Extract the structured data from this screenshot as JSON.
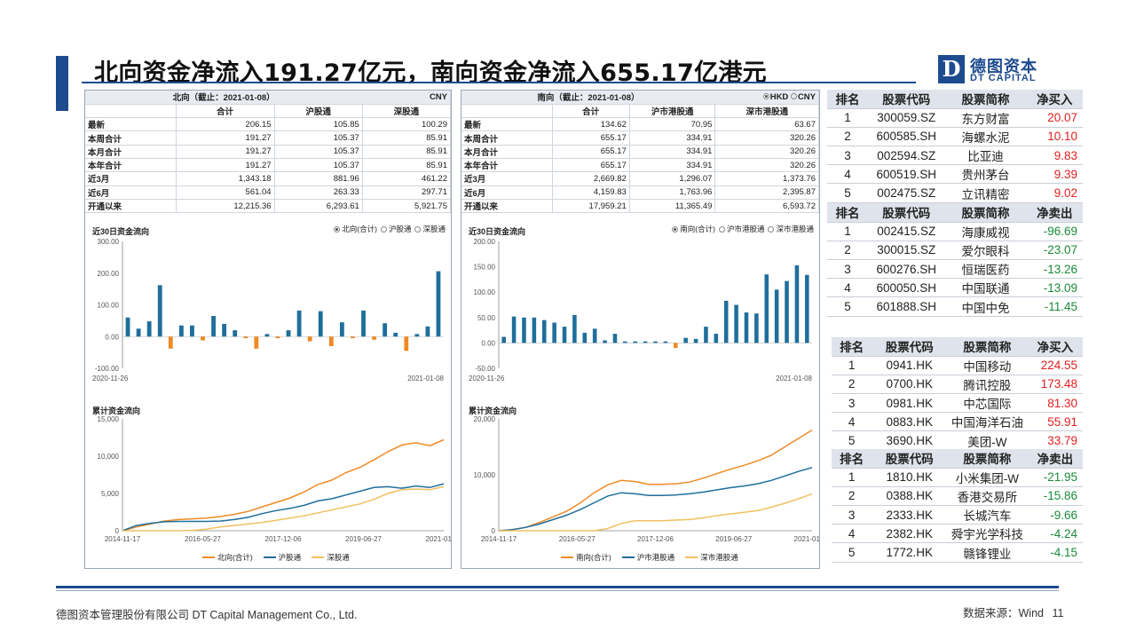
{
  "title": "北向资金净流入191.27亿元，南向资金净流入655.17亿港元",
  "logo": {
    "mark": "D",
    "cn": "德图资本",
    "en": "DT CAPITAL"
  },
  "north": {
    "header": "北向（截止：2021-01-08）",
    "currency": "CNY",
    "columns": [
      "合计",
      "沪股通",
      "深股通"
    ],
    "rows": [
      {
        "label": "最新",
        "values": [
          "206.15",
          "105.85",
          "100.29"
        ]
      },
      {
        "label": "本周合计",
        "values": [
          "191.27",
          "105.37",
          "85.91"
        ]
      },
      {
        "label": "本月合计",
        "values": [
          "191.27",
          "105.37",
          "85.91"
        ]
      },
      {
        "label": "本年合计",
        "values": [
          "191.27",
          "105.37",
          "85.91"
        ]
      },
      {
        "label": "近3月",
        "values": [
          "1,343.18",
          "881.96",
          "461.22"
        ]
      },
      {
        "label": "近6月",
        "values": [
          "561.04",
          "263.33",
          "297.71"
        ]
      },
      {
        "label": "开通以来",
        "values": [
          "12,215.36",
          "6,293.61",
          "5,921.75"
        ]
      }
    ],
    "daily_title": "近30日资金流向",
    "daily_radios": [
      "北向(合计)",
      "沪股通",
      "深股通"
    ],
    "cum_title": "累计资金流向",
    "cum_legend": [
      "北向(合计)",
      "沪股通",
      "深股通"
    ]
  },
  "south": {
    "header": "南向（截止：2021-01-08）",
    "currency_opts": [
      "HKD",
      "CNY"
    ],
    "columns": [
      "合计",
      "沪市港股通",
      "深市港股通"
    ],
    "rows": [
      {
        "label": "最新",
        "values": [
          "134.62",
          "70.95",
          "63.67"
        ]
      },
      {
        "label": "本周合计",
        "values": [
          "655.17",
          "334.91",
          "320.26"
        ]
      },
      {
        "label": "本月合计",
        "values": [
          "655.17",
          "334.91",
          "320.26"
        ]
      },
      {
        "label": "本年合计",
        "values": [
          "655.17",
          "334.91",
          "320.26"
        ]
      },
      {
        "label": "近3月",
        "values": [
          "2,669.82",
          "1,296.07",
          "1,373.76"
        ]
      },
      {
        "label": "近6月",
        "values": [
          "4,159.83",
          "1,763.96",
          "2,395.87"
        ]
      },
      {
        "label": "开通以来",
        "values": [
          "17,959.21",
          "11,365.49",
          "6,593.72"
        ]
      }
    ],
    "daily_title": "近30日资金流向",
    "daily_radios": [
      "南向(合计)",
      "沪市港股通",
      "深市港股通"
    ],
    "cum_title": "累计资金流向",
    "cum_legend": [
      "南向(合计)",
      "沪市港股通",
      "深市港股通"
    ]
  },
  "chart_data": [
    {
      "type": "bar",
      "title": "近30日资金流向",
      "x_start": "2020-11-26",
      "x_end": "2021-01-08",
      "ylim": [
        -100,
        300
      ],
      "yticks": [
        "-100.00",
        "0.00",
        "100.00",
        "200.00",
        "300.00"
      ],
      "values": [
        60,
        25,
        48,
        162,
        -38,
        35,
        35,
        -12,
        65,
        40,
        20,
        -5,
        -38,
        8,
        -5,
        20,
        82,
        -15,
        80,
        -30,
        45,
        -5,
        82,
        -10,
        42,
        12,
        -45,
        8,
        32,
        206
      ],
      "pos_color": "#1f6e9c",
      "neg_color": "#f08a24"
    },
    {
      "type": "bar",
      "title": "近30日资金流向",
      "x_start": "2020-11-26",
      "x_end": "2021-01-08",
      "ylim": [
        -50,
        200
      ],
      "yticks": [
        "-50.00",
        "0.00",
        "50.00",
        "100.00",
        "150.00",
        "200.00"
      ],
      "values": [
        12,
        52,
        50,
        50,
        45,
        40,
        32,
        55,
        20,
        28,
        5,
        18,
        3,
        3,
        3,
        3,
        3,
        -10,
        10,
        8,
        32,
        18,
        83,
        75,
        60,
        58,
        135,
        105,
        122,
        153,
        134
      ],
      "pos_color": "#1f6e9c",
      "neg_color": "#f08a24"
    },
    {
      "type": "line",
      "title": "累计资金流向",
      "xticks": [
        "2014-11-17",
        "2016-05-27",
        "2017-12-06",
        "2019-06-27",
        "2021-01-07"
      ],
      "ylim": [
        0,
        15000
      ],
      "yticks": [
        "0",
        "5,000",
        "10,000",
        "15,000"
      ],
      "series": [
        {
          "name": "北向(合计)",
          "color": "#f08a24",
          "values": [
            0,
            500,
            900,
            1300,
            1500,
            1600,
            1700,
            1900,
            2200,
            2600,
            3200,
            3800,
            4400,
            5200,
            6200,
            6800,
            7800,
            8500,
            9500,
            10600,
            11500,
            11800,
            11400,
            12200
          ]
        },
        {
          "name": "沪股通",
          "color": "#1f6e9c",
          "values": [
            0,
            700,
            1000,
            1200,
            1250,
            1250,
            1250,
            1300,
            1500,
            1800,
            2300,
            2700,
            3000,
            3400,
            4000,
            4300,
            4800,
            5300,
            5800,
            5900,
            5700,
            6000,
            5800,
            6300
          ]
        },
        {
          "name": "深股通",
          "color": "#f0c060",
          "values": [
            0,
            0,
            0,
            0,
            0,
            50,
            200,
            500,
            700,
            900,
            1100,
            1400,
            1700,
            2000,
            2400,
            2800,
            3200,
            3600,
            4200,
            5000,
            5500,
            5600,
            5500,
            5900
          ]
        }
      ]
    },
    {
      "type": "line",
      "title": "累计资金流向",
      "xticks": [
        "2014-11-17",
        "2016-05-27",
        "2017-12-06",
        "2019-06-27",
        "2021-01-07"
      ],
      "ylim": [
        0,
        20000
      ],
      "yticks": [
        "0",
        "10,000",
        "20,000"
      ],
      "series": [
        {
          "name": "南向(合计)",
          "color": "#f08a24",
          "values": [
            0,
            200,
            600,
            1500,
            2500,
            3500,
            5000,
            6800,
            8200,
            9000,
            8800,
            8300,
            8300,
            8400,
            8700,
            9400,
            10200,
            11000,
            11700,
            12500,
            13500,
            15000,
            16500,
            18000
          ]
        },
        {
          "name": "沪市港股通",
          "color": "#1f6e9c",
          "values": [
            0,
            200,
            600,
            1200,
            2000,
            2800,
            3800,
            5000,
            6200,
            6800,
            6600,
            6300,
            6300,
            6400,
            6600,
            6900,
            7300,
            7700,
            8000,
            8400,
            9000,
            9800,
            10600,
            11300
          ]
        },
        {
          "name": "深市港股通",
          "color": "#f0c060",
          "values": [
            0,
            0,
            0,
            0,
            0,
            0,
            0,
            0,
            400,
            1300,
            1800,
            1800,
            1800,
            1900,
            2000,
            2300,
            2700,
            3000,
            3300,
            3600,
            4200,
            4900,
            5700,
            6600
          ]
        }
      ]
    }
  ],
  "a_buy": {
    "headers": [
      "排名",
      "股票代码",
      "股票简称",
      "净买入"
    ],
    "rows": [
      [
        "1",
        "300059.SZ",
        "东方财富",
        "20.07"
      ],
      [
        "2",
        "600585.SH",
        "海螺水泥",
        "10.10"
      ],
      [
        "3",
        "002594.SZ",
        "比亚迪",
        "9.83"
      ],
      [
        "4",
        "600519.SH",
        "贵州茅台",
        "9.39"
      ],
      [
        "5",
        "002475.SZ",
        "立讯精密",
        "9.02"
      ]
    ]
  },
  "a_sell": {
    "headers": [
      "排名",
      "股票代码",
      "股票简称",
      "净卖出"
    ],
    "rows": [
      [
        "1",
        "002415.SZ",
        "海康威视",
        "-96.69"
      ],
      [
        "2",
        "300015.SZ",
        "爱尔眼科",
        "-23.07"
      ],
      [
        "3",
        "600276.SH",
        "恒瑞医药",
        "-13.26"
      ],
      [
        "4",
        "600050.SH",
        "中国联通",
        "-13.09"
      ],
      [
        "5",
        "601888.SH",
        "中国中免",
        "-11.45"
      ]
    ]
  },
  "hk_buy": {
    "headers": [
      "排名",
      "股票代码",
      "股票简称",
      "净买入"
    ],
    "rows": [
      [
        "1",
        "0941.HK",
        "中国移动",
        "224.55"
      ],
      [
        "2",
        "0700.HK",
        "腾讯控股",
        "173.48"
      ],
      [
        "3",
        "0981.HK",
        "中芯国际",
        "81.30"
      ],
      [
        "4",
        "0883.HK",
        "中国海洋石油",
        "55.91"
      ],
      [
        "5",
        "3690.HK",
        "美团-W",
        "33.79"
      ]
    ]
  },
  "hk_sell": {
    "headers": [
      "排名",
      "股票代码",
      "股票简称",
      "净卖出"
    ],
    "rows": [
      [
        "1",
        "1810.HK",
        "小米集团-W",
        "-21.95"
      ],
      [
        "2",
        "0388.HK",
        "香港交易所",
        "-15.86"
      ],
      [
        "3",
        "2333.HK",
        "长城汽车",
        "-9.66"
      ],
      [
        "4",
        "2382.HK",
        "舜宇光学科技",
        "-4.24"
      ],
      [
        "5",
        "1772.HK",
        "赣锋锂业",
        "-4.15"
      ]
    ]
  },
  "footer": {
    "company": "德图资本管理股份有限公司 DT Capital Management Co., Ltd.",
    "source": "数据来源：Wind",
    "page": "11"
  }
}
